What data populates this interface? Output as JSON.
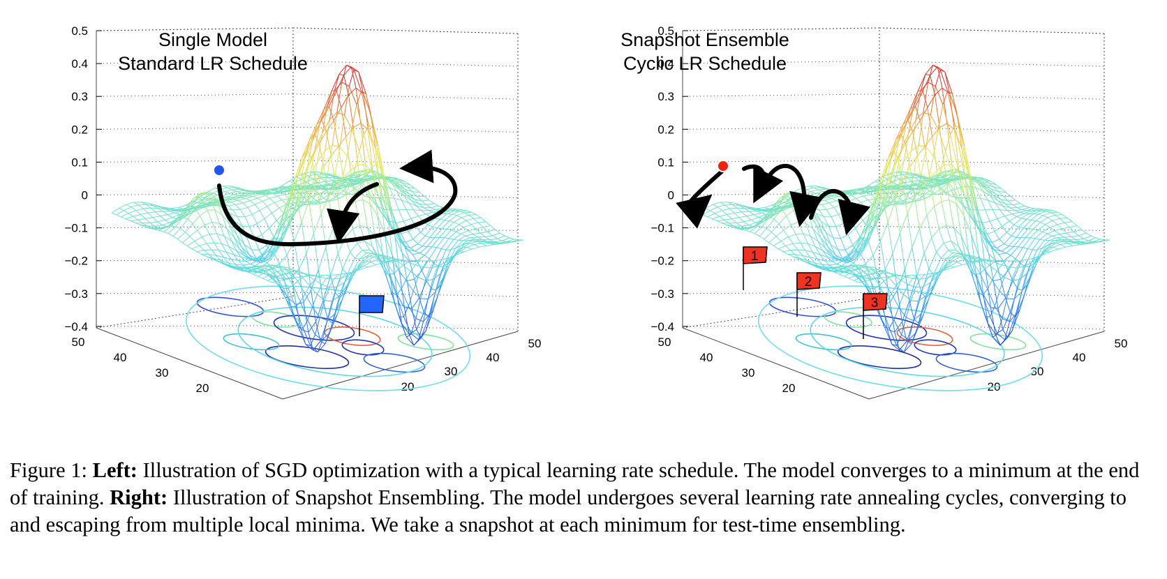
{
  "figure": {
    "left_panel": {
      "title_lines": [
        "Single Model",
        "Standard LR Schedule"
      ],
      "z_ticks": [
        "0.5",
        "0.4",
        "0.3",
        "0.2",
        "0.1",
        "0",
        "−0.1",
        "−0.2",
        "−0.3",
        "−0.4"
      ],
      "left_axis_ticks": [
        "50",
        "40",
        "30",
        "20"
      ],
      "right_axis_ticks": [
        "50",
        "40",
        "30",
        "20"
      ],
      "marker_color": "#2255ee",
      "flag_color": "#2266ff"
    },
    "right_panel": {
      "title_lines": [
        "Snapshot Ensemble",
        "Cyclic LR Schedule"
      ],
      "z_ticks": [
        "0.5",
        "0.4",
        "0.3",
        "0.2",
        "0.1",
        "0",
        "−0.1",
        "−0.2",
        "−0.3",
        "−0.4"
      ],
      "left_axis_ticks": [
        "50",
        "40",
        "30",
        "20"
      ],
      "right_axis_ticks": [
        "50",
        "40",
        "30",
        "20"
      ],
      "marker_color": "#ee2211",
      "flag_color": "#ee3322",
      "flag_labels": [
        "1",
        "2",
        "3"
      ]
    }
  },
  "caption": {
    "figure_label": "Figure 1:",
    "left_label": "Left:",
    "left_text": "Illustration of SGD optimization with a typical learning rate schedule. The model converges to a minimum at the end of training.",
    "right_label": "Right:",
    "right_text": "Illustration of Snapshot Ensembling. The model undergoes several learning rate annealing cycles, converging to and escaping from multiple local minima. We take a snapshot at each minimum for test-time ensembling."
  }
}
